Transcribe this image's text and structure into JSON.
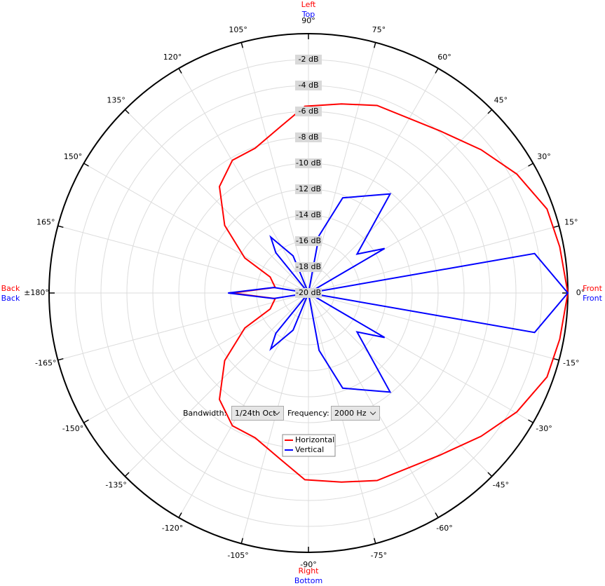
{
  "chart_data": {
    "type": "polar",
    "rlim": [
      -20,
      0
    ],
    "rticks": [
      {
        "value": -2,
        "label": "-2 dB"
      },
      {
        "value": -4,
        "label": "-4 dB"
      },
      {
        "value": -6,
        "label": "-6 dB"
      },
      {
        "value": -8,
        "label": "-8 dB"
      },
      {
        "value": -10,
        "label": "-10 dB"
      },
      {
        "value": -12,
        "label": "-12 dB"
      },
      {
        "value": -14,
        "label": "-14 dB"
      },
      {
        "value": -16,
        "label": "-16 dB"
      },
      {
        "value": -18,
        "label": "-18 dB"
      },
      {
        "value": -20,
        "label": "-20 dB"
      }
    ],
    "thetaticks": [
      {
        "value": 0,
        "label": "0°"
      },
      {
        "value": 15,
        "label": "15°"
      },
      {
        "value": 30,
        "label": "30°"
      },
      {
        "value": 45,
        "label": "45°"
      },
      {
        "value": 60,
        "label": "60°"
      },
      {
        "value": 75,
        "label": "75°"
      },
      {
        "value": 90,
        "label": "90°"
      },
      {
        "value": 105,
        "label": "105°"
      },
      {
        "value": 120,
        "label": "120°"
      },
      {
        "value": 135,
        "label": "135°"
      },
      {
        "value": 150,
        "label": "150°"
      },
      {
        "value": 165,
        "label": "165°"
      },
      {
        "value": 180,
        "label": "±180°"
      },
      {
        "value": -165,
        "label": "-165°"
      },
      {
        "value": -150,
        "label": "-150°"
      },
      {
        "value": -135,
        "label": "-135°"
      },
      {
        "value": -120,
        "label": "-120°"
      },
      {
        "value": -105,
        "label": "-105°"
      },
      {
        "value": -90,
        "label": "-90°"
      },
      {
        "value": -75,
        "label": "-75°"
      },
      {
        "value": -60,
        "label": "-60°"
      },
      {
        "value": -45,
        "label": "-45°"
      },
      {
        "value": -30,
        "label": "-30°"
      },
      {
        "value": -15,
        "label": "-15°"
      }
    ],
    "grid": true,
    "direction_labels": [
      {
        "position": "top",
        "texts": [
          "Left",
          "Top"
        ]
      },
      {
        "position": "bottom",
        "texts": [
          "Right",
          "Bottom"
        ]
      },
      {
        "position": "left",
        "texts": [
          "Back",
          "Back"
        ]
      },
      {
        "position": "right",
        "texts": [
          "Front",
          "Front"
        ]
      }
    ],
    "series": [
      {
        "name": "Horizontal",
        "color": "#ff0000",
        "angles": [
          -170.5,
          -157.3,
          -151.2,
          -141.1,
          -129.9,
          -119.8,
          -110.2,
          -99.6,
          -91.1,
          -80.1,
          -69.9,
          -50.9,
          -39.7,
          -29.7,
          -19.4,
          -10.4,
          0,
          10.4,
          19.4,
          29.7,
          39.7,
          50.9,
          69.9,
          80.1,
          91.1,
          99.6,
          110.2,
          119.8,
          129.9,
          141.1,
          151.2,
          157.3,
          170.5,
          180
        ],
        "values": [
          -17.4,
          -16.8,
          -14.4,
          -11.7,
          -9.3,
          -8.2,
          -8.1,
          -7.0,
          -5.6,
          -5.2,
          -4.6,
          -3.9,
          -2.7,
          -1.5,
          -0.5,
          -0.3,
          0,
          -0.3,
          -0.5,
          -1.5,
          -2.7,
          -3.9,
          -4.6,
          -5.2,
          -5.6,
          -7.0,
          -8.1,
          -8.2,
          -9.3,
          -11.7,
          -14.4,
          -16.8,
          -17.4,
          -14.1
        ]
      },
      {
        "name": "Vertical",
        "color": "#0000ff",
        "angles": [
          -170.9,
          -150,
          -129,
          -124,
          -112.5,
          -90,
          -79.5,
          -70.2,
          -50.5,
          -38.7,
          -30.3,
          -20,
          -9.9,
          0,
          9.9,
          20,
          30.3,
          38.7,
          50.5,
          70.2,
          79.5,
          90,
          112.5,
          124,
          129,
          150,
          170.9,
          180
        ],
        "values": [
          -17.3,
          -20,
          -16.0,
          -14.8,
          -16.9,
          -20,
          -15.5,
          -12.2,
          -10.1,
          -15.2,
          -13.2,
          -20,
          -2.3,
          0,
          -2.3,
          -20,
          -13.2,
          -15.2,
          -10.1,
          -12.2,
          -15.5,
          -20,
          -16.9,
          -14.8,
          -16.0,
          -20,
          -17.3,
          -13.8
        ]
      }
    ],
    "legend": "bottom"
  },
  "controls": {
    "bandwidth_label": "Bandwidth:",
    "bandwidth_value": "1/24th Oct",
    "frequency_label": "Frequency:",
    "frequency_value": "2000 Hz"
  }
}
